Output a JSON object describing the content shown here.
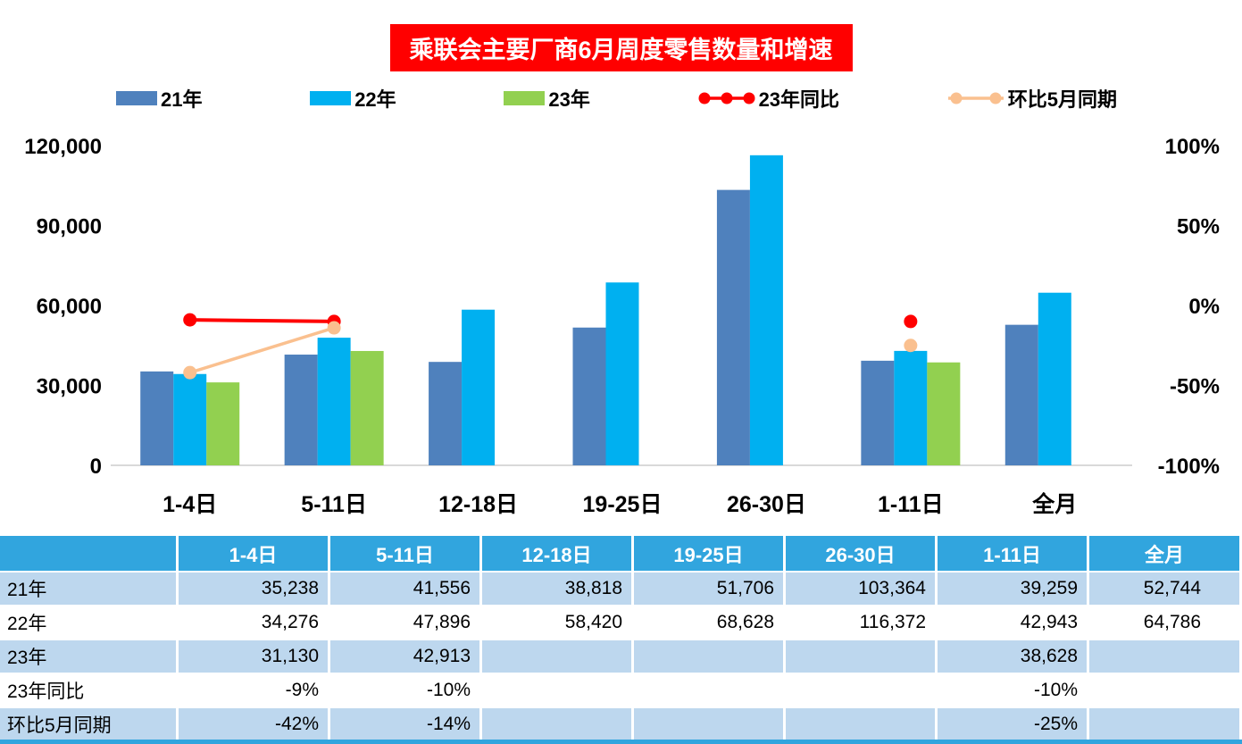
{
  "chart": {
    "title": "乘联会主要厂商6月周度零售数量和增速",
    "title_bg": "#FF0000",
    "title_color": "#FFFFFF"
  },
  "chart_data": {
    "type": "bar",
    "title": "乘联会主要厂商6月周度零售数量和增速",
    "legend_position": "top",
    "grid": false,
    "categories": [
      "1-4日",
      "5-11日",
      "12-18日",
      "19-25日",
      "26-30日",
      "1-11日",
      "全月"
    ],
    "series": [
      {
        "key": "y21",
        "name": "21年",
        "kind": "bar",
        "color": "#4F81BD",
        "values": [
          35238,
          41556,
          38818,
          51706,
          103364,
          39259,
          52744
        ]
      },
      {
        "key": "y22",
        "name": "22年",
        "kind": "bar",
        "color": "#00B0F0",
        "values": [
          34276,
          47896,
          58420,
          68628,
          116372,
          42943,
          64786
        ]
      },
      {
        "key": "y23",
        "name": "23年",
        "kind": "bar",
        "color": "#92D050",
        "values": [
          31130,
          42913,
          null,
          null,
          null,
          38628,
          null
        ]
      },
      {
        "key": "yoy23",
        "name": "23年同比",
        "kind": "line",
        "axis": "right",
        "color": "#FF0000",
        "values": [
          -9,
          -10,
          null,
          null,
          null,
          -10,
          null
        ]
      },
      {
        "key": "mom_may",
        "name": "环比5月同期",
        "kind": "line",
        "axis": "right",
        "color": "#FAC08F",
        "values": [
          -42,
          -14,
          null,
          null,
          null,
          -25,
          null
        ]
      }
    ],
    "left_axis": {
      "min": 0,
      "max": 120000,
      "ticks": [
        {
          "v": 0,
          "label": "0"
        },
        {
          "v": 30000,
          "label": "30,000"
        },
        {
          "v": 60000,
          "label": "60,000"
        },
        {
          "v": 90000,
          "label": "90,000"
        },
        {
          "v": 120000,
          "label": "120,000"
        }
      ]
    },
    "right_axis": {
      "min": -100,
      "max": 100,
      "ticks": [
        {
          "v": -100,
          "label": "-100%"
        },
        {
          "v": -50,
          "label": "-50%"
        },
        {
          "v": 0,
          "label": "0%"
        },
        {
          "v": 50,
          "label": "50%"
        },
        {
          "v": 100,
          "label": "100%"
        }
      ]
    }
  },
  "table": {
    "header": [
      "",
      "1-4日",
      "5-11日",
      "12-18日",
      "19-25日",
      "26-30日",
      "1-11日",
      "全月"
    ],
    "rows": [
      {
        "label": "21年",
        "values": [
          "35,238",
          "41,556",
          "38,818",
          "51,706",
          "103,364",
          "39,259",
          "52,744"
        ]
      },
      {
        "label": "22年",
        "values": [
          "34,276",
          "47,896",
          "58,420",
          "68,628",
          "116,372",
          "42,943",
          "64,786"
        ]
      },
      {
        "label": "23年",
        "values": [
          "31,130",
          "42,913",
          "",
          "",
          "",
          "38,628",
          ""
        ]
      },
      {
        "label": "23年同比",
        "values": [
          "-9%",
          "-10%",
          "",
          "",
          "",
          "-10%",
          ""
        ]
      },
      {
        "label": "环比5月同期",
        "values": [
          "-42%",
          "-14%",
          "",
          "",
          "",
          "-25%",
          ""
        ]
      }
    ],
    "colors": {
      "header_bg": "#31A5DE",
      "header_text": "#FFFFFF",
      "alt_row_bg": "#BDD7EE",
      "row_bg": "#FFFFFF",
      "text": "#000000"
    }
  }
}
